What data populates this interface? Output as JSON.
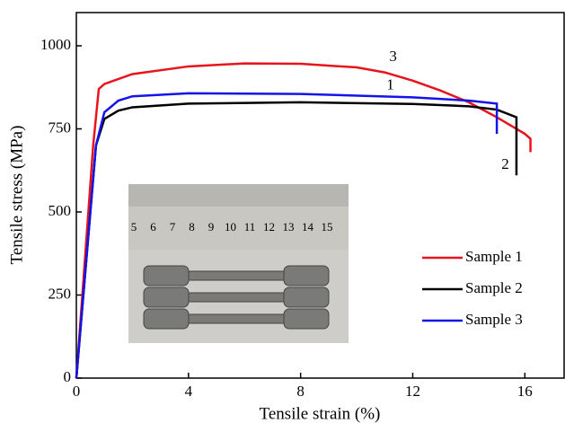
{
  "chart_data": {
    "type": "line",
    "xlabel": "Tensile strain (%)",
    "ylabel": "Tensile stress (MPa)",
    "xlim": [
      0,
      17.4
    ],
    "ylim": [
      0,
      1100
    ],
    "xticks": [
      0,
      4,
      8,
      12,
      16
    ],
    "yticks": [
      0,
      250,
      500,
      750,
      1000
    ],
    "legend": "lower right",
    "series": [
      {
        "name": "Sample 1",
        "color": "#e8141b",
        "x": [
          0,
          0.6,
          0.8,
          1,
          2,
          4,
          6,
          8,
          10,
          11,
          12,
          13,
          14,
          15,
          16,
          16.2,
          16.2
        ],
        "values": [
          0,
          700,
          870,
          885,
          915,
          938,
          947,
          946,
          935,
          920,
          895,
          865,
          830,
          785,
          735,
          720,
          680
        ]
      },
      {
        "name": "Sample 2",
        "color": "#000000",
        "x": [
          0,
          0.7,
          1,
          1.5,
          2,
          4,
          8,
          12,
          14,
          15,
          15.7,
          15.7
        ],
        "values": [
          0,
          700,
          780,
          805,
          815,
          826,
          830,
          825,
          818,
          808,
          785,
          610
        ]
      },
      {
        "name": "Sample 3",
        "color": "#1414e8",
        "x": [
          0,
          0.7,
          1,
          1.5,
          2,
          4,
          8,
          12,
          14,
          15,
          15,
          15
        ],
        "values": [
          0,
          700,
          800,
          835,
          848,
          857,
          855,
          845,
          835,
          826,
          826,
          735
        ]
      }
    ],
    "annotations": [
      {
        "text": "3",
        "x": 11.3,
        "y": 965
      },
      {
        "text": "1",
        "x": 11.2,
        "y": 880
      },
      {
        "text": "2",
        "x": 15.3,
        "y": 640
      }
    ],
    "inset_labels": [
      "5",
      "6",
      "7",
      "8",
      "9",
      "10",
      "11",
      "12",
      "13",
      "14",
      "15"
    ]
  }
}
